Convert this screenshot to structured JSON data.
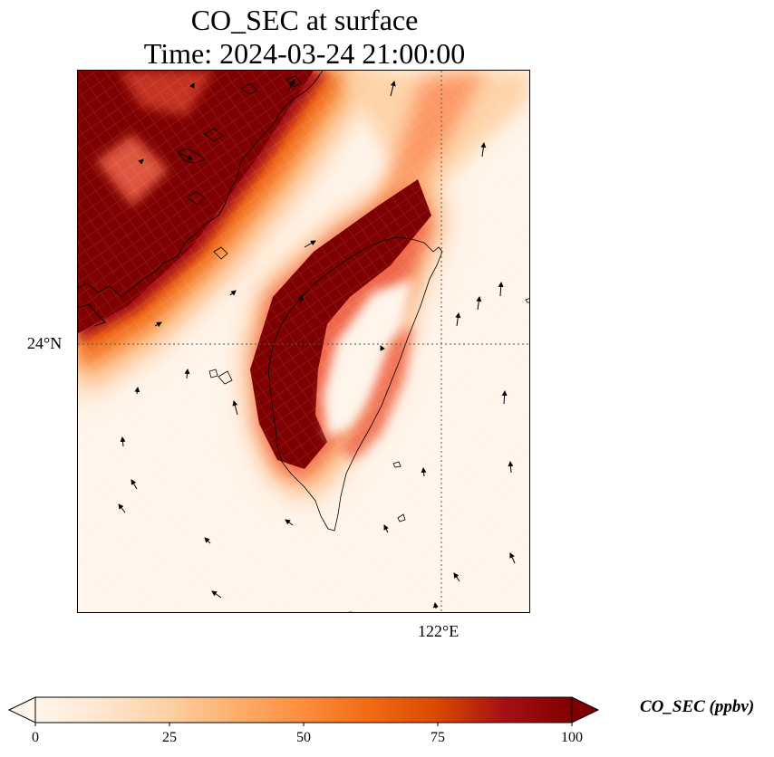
{
  "title": {
    "line1": "CO_SEC at surface",
    "line2": "Time: 2024-03-24 21:00:00"
  },
  "map": {
    "lat_tick_label": "24°N",
    "lon_tick_label": "122°E",
    "grid_line_lat": 24,
    "grid_line_lon": 122,
    "shown_features": [
      "concentration-field",
      "coastlines",
      "wind-vectors",
      "gridlines"
    ]
  },
  "colorbar": {
    "title": "CO_SEC (ppbv)",
    "ticks": [
      "0",
      "25",
      "50",
      "75",
      "100"
    ],
    "tick_values": [
      0,
      25,
      50,
      75,
      100
    ],
    "range": [
      0,
      100
    ],
    "extend": "both",
    "colormap_stops": [
      "#fff5eb",
      "#fee6ce",
      "#fdd0a2",
      "#fdae6b",
      "#fd8d3c",
      "#f16913",
      "#d94801",
      "#a50f15",
      "#7f0000"
    ]
  },
  "chart_data": {
    "type": "heatmap",
    "variable": "CO_SEC",
    "units": "ppbv",
    "level": "surface",
    "time": "2024-03-24 21:00:00",
    "value_range": [
      0,
      100
    ],
    "colormap": "OrRd",
    "extend": "both",
    "features": {
      "plume_northwest": "≥100 over the mainland coast and Taiwan Strait north (dark red)",
      "plume_taiwan_west": "≥100 along western Taiwan coast",
      "plume_taiwan_east": "25–75 along eastern Taiwan",
      "background": "0–10 over open ocean"
    }
  }
}
